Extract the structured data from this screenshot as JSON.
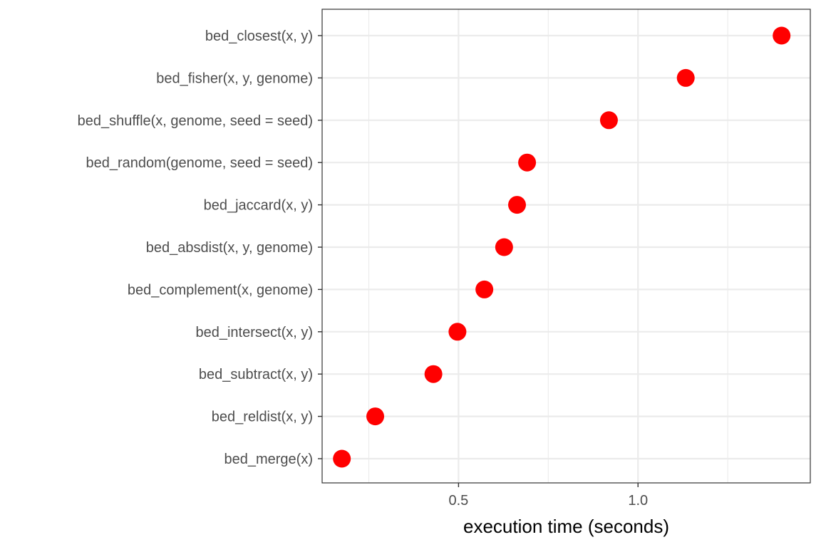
{
  "chart_data": {
    "type": "scatter",
    "title": "",
    "xlabel": "execution time (seconds)",
    "ylabel": "",
    "xlim": [
      0.12,
      1.48
    ],
    "x_ticks": [
      0.5,
      1.0
    ],
    "x_tick_labels": [
      "0.5",
      "1.0"
    ],
    "x_minor_ticks": [
      0.25,
      0.75,
      1.25
    ],
    "grid": true,
    "point_color": "#ff0000",
    "categories": [
      "bed_merge(x)",
      "bed_reldist(x, y)",
      "bed_subtract(x, y)",
      "bed_intersect(x, y)",
      "bed_complement(x, genome)",
      "bed_absdist(x, y, genome)",
      "bed_jaccard(x, y)",
      "bed_random(genome, seed = seed)",
      "bed_shuffle(x, genome, seed = seed)",
      "bed_fisher(x, y, genome)",
      "bed_closest(x, y)"
    ],
    "values": [
      0.175,
      0.268,
      0.43,
      0.497,
      0.572,
      0.627,
      0.663,
      0.691,
      0.919,
      1.133,
      1.4
    ]
  }
}
